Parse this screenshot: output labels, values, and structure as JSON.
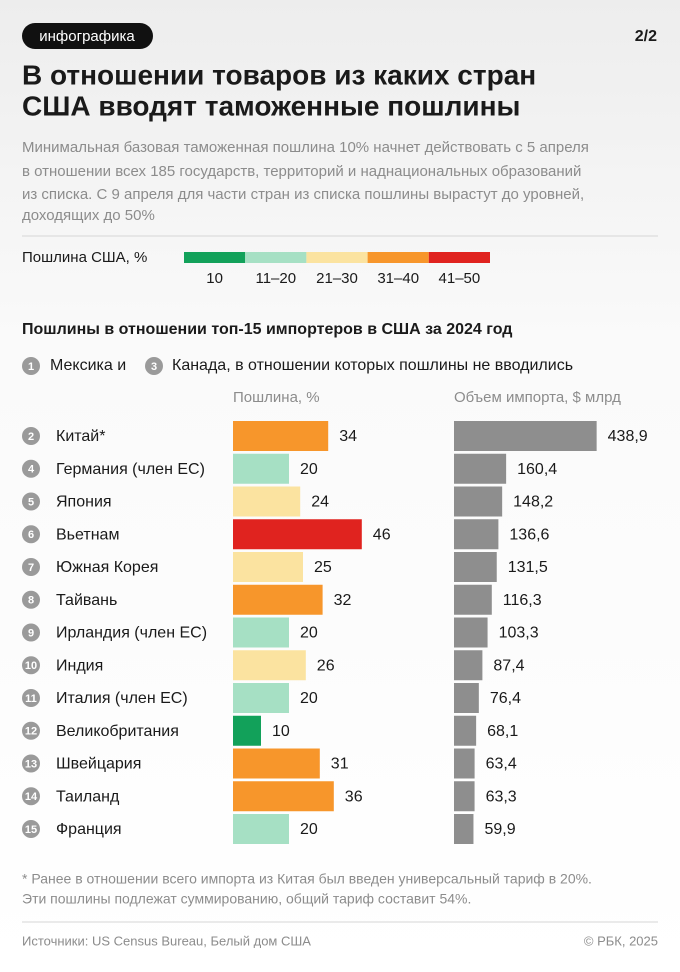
{
  "badge": "инфографика",
  "page_number": "2/2",
  "title": [
    "В отношении товаров из каких стран",
    "США вводят таможенные пошлины"
  ],
  "subtitle": [
    "Минимальная базовая таможенная пошлина 10% начнет действовать с 5 апреля",
    "в отношении всех 185 государств, территорий и наднациональных образований",
    "из списка. С 9 апреля для части стран из списка пошлины вырастут до уровней,",
    "доходящих до 50%"
  ],
  "legend": {
    "title": "Пошлина США, %",
    "items": [
      {
        "label": "10",
        "color": "#12a15a"
      },
      {
        "label": "11–20",
        "color": "#a6e0c4"
      },
      {
        "label": "21–30",
        "color": "#fbe3a0"
      },
      {
        "label": "31–40",
        "color": "#f7962b"
      },
      {
        "label": "41–50",
        "color": "#e0231f"
      }
    ]
  },
  "section_title": "Пошлины в отношении топ-15 импортеров в США за 2024 год",
  "note": [
    {
      "rank": 1,
      "text": "Мексика и"
    },
    {
      "rank": 3,
      "text": "Канада, в отношении которых пошлины не вводились"
    }
  ],
  "ranks": [
    2,
    4,
    5,
    6,
    7,
    8,
    9,
    10,
    11,
    12,
    13,
    14,
    15
  ],
  "chart_data": [
    {
      "type": "bar",
      "orientation": "horizontal",
      "title": "Пошлина, %",
      "categories": [
        "Китай*",
        "Германия (член ЕС)",
        "Япония",
        "Вьетнам",
        "Южная Корея",
        "Тайвань",
        "Ирландия (член ЕС)",
        "Индия",
        "Италия (член ЕС)",
        "Великобритания",
        "Швейцария",
        "Таиланд",
        "Франция"
      ],
      "values": [
        34,
        20,
        24,
        46,
        25,
        32,
        20,
        26,
        20,
        10,
        31,
        36,
        20
      ],
      "colors": [
        "#f7962b",
        "#a6e0c4",
        "#fbe3a0",
        "#e0231f",
        "#fbe3a0",
        "#f7962b",
        "#a6e0c4",
        "#fbe3a0",
        "#a6e0c4",
        "#12a15a",
        "#f7962b",
        "#f7962b",
        "#a6e0c4"
      ],
      "xlim": [
        0,
        50
      ]
    },
    {
      "type": "bar",
      "orientation": "horizontal",
      "title": "Объем импорта, $ млрд",
      "values": [
        438.9,
        160.4,
        148.2,
        136.6,
        131.5,
        116.3,
        103.3,
        87.4,
        76.4,
        68.1,
        63.4,
        63.3,
        59.9
      ],
      "value_labels": [
        "438,9",
        "160,4",
        "148,2",
        "136,6",
        "131,5",
        "116,3",
        "103,3",
        "87,4",
        "76,4",
        "68,1",
        "63,4",
        "63,3",
        "59,9"
      ],
      "color": "#8e8e8e",
      "xlim": [
        0,
        440
      ]
    }
  ],
  "footnote": [
    "* Ранее в отношении всего импорта из Китая был введен универсальный тариф в 20%.",
    "Эти пошлины подлежат суммированию, общий тариф составит 54%."
  ],
  "sources": "Источники: US Census Bureau, Белый дом США",
  "copyright": "© РБК, 2025"
}
